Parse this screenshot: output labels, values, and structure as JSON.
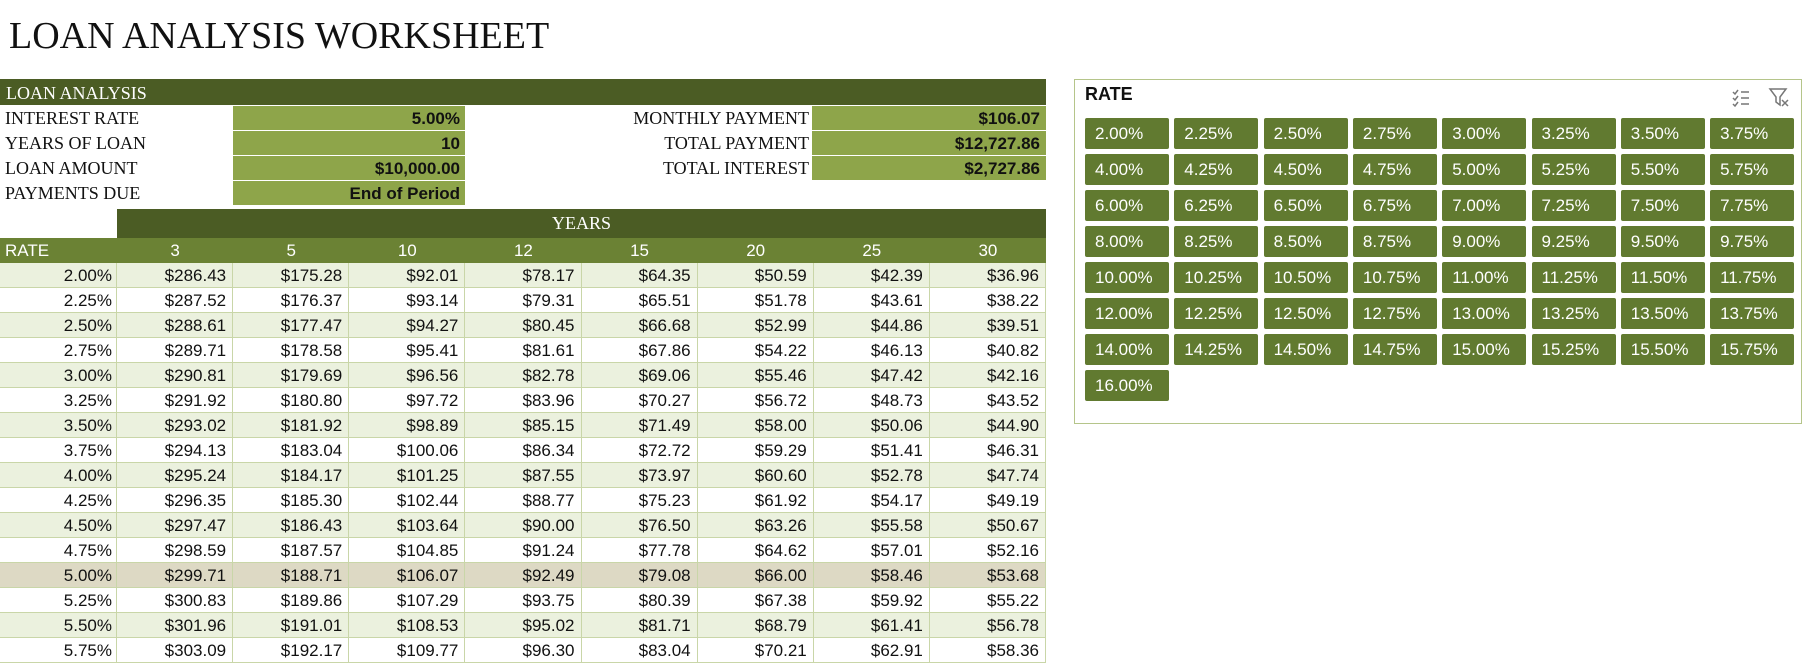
{
  "title": "LOAN ANALYSIS WORKSHEET",
  "loan_analysis": {
    "header": "LOAN ANALYSIS",
    "inputs": [
      {
        "label": "INTEREST RATE",
        "value": "5.00%"
      },
      {
        "label": "YEARS OF LOAN",
        "value": "10"
      },
      {
        "label": "LOAN AMOUNT",
        "value": "$10,000.00"
      },
      {
        "label": "PAYMENTS DUE",
        "value": "End of Period"
      }
    ],
    "outputs": [
      {
        "label": "MONTHLY PAYMENT",
        "value": "$106.07"
      },
      {
        "label": "TOTAL PAYMENT",
        "value": "$12,727.86"
      },
      {
        "label": "TOTAL INTEREST",
        "value": "$2,727.86"
      }
    ]
  },
  "table": {
    "group_header": "YEARS",
    "header": [
      "RATE",
      "3",
      "5",
      "10",
      "12",
      "15",
      "20",
      "25",
      "30"
    ],
    "rows": [
      [
        "2.00%",
        "$286.43",
        "$175.28",
        "$92.01",
        "$78.17",
        "$64.35",
        "$50.59",
        "$42.39",
        "$36.96"
      ],
      [
        "2.25%",
        "$287.52",
        "$176.37",
        "$93.14",
        "$79.31",
        "$65.51",
        "$51.78",
        "$43.61",
        "$38.22"
      ],
      [
        "2.50%",
        "$288.61",
        "$177.47",
        "$94.27",
        "$80.45",
        "$66.68",
        "$52.99",
        "$44.86",
        "$39.51"
      ],
      [
        "2.75%",
        "$289.71",
        "$178.58",
        "$95.41",
        "$81.61",
        "$67.86",
        "$54.22",
        "$46.13",
        "$40.82"
      ],
      [
        "3.00%",
        "$290.81",
        "$179.69",
        "$96.56",
        "$82.78",
        "$69.06",
        "$55.46",
        "$47.42",
        "$42.16"
      ],
      [
        "3.25%",
        "$291.92",
        "$180.80",
        "$97.72",
        "$83.96",
        "$70.27",
        "$56.72",
        "$48.73",
        "$43.52"
      ],
      [
        "3.50%",
        "$293.02",
        "$181.92",
        "$98.89",
        "$85.15",
        "$71.49",
        "$58.00",
        "$50.06",
        "$44.90"
      ],
      [
        "3.75%",
        "$294.13",
        "$183.04",
        "$100.06",
        "$86.34",
        "$72.72",
        "$59.29",
        "$51.41",
        "$46.31"
      ],
      [
        "4.00%",
        "$295.24",
        "$184.17",
        "$101.25",
        "$87.55",
        "$73.97",
        "$60.60",
        "$52.78",
        "$47.74"
      ],
      [
        "4.25%",
        "$296.35",
        "$185.30",
        "$102.44",
        "$88.77",
        "$75.23",
        "$61.92",
        "$54.17",
        "$49.19"
      ],
      [
        "4.50%",
        "$297.47",
        "$186.43",
        "$103.64",
        "$90.00",
        "$76.50",
        "$63.26",
        "$55.58",
        "$50.67"
      ],
      [
        "4.75%",
        "$298.59",
        "$187.57",
        "$104.85",
        "$91.24",
        "$77.78",
        "$64.62",
        "$57.01",
        "$52.16"
      ],
      [
        "5.00%",
        "$299.71",
        "$188.71",
        "$106.07",
        "$92.49",
        "$79.08",
        "$66.00",
        "$58.46",
        "$53.68"
      ],
      [
        "5.25%",
        "$300.83",
        "$189.86",
        "$107.29",
        "$93.75",
        "$80.39",
        "$67.38",
        "$59.92",
        "$55.22"
      ],
      [
        "5.50%",
        "$301.96",
        "$191.01",
        "$108.53",
        "$95.02",
        "$81.71",
        "$68.79",
        "$61.41",
        "$56.78"
      ],
      [
        "5.75%",
        "$303.09",
        "$192.17",
        "$109.77",
        "$96.30",
        "$83.04",
        "$70.21",
        "$62.91",
        "$58.36"
      ]
    ]
  },
  "slicer": {
    "title": "RATE",
    "items": [
      "2.00%",
      "2.25%",
      "2.50%",
      "2.75%",
      "3.00%",
      "3.25%",
      "3.50%",
      "3.75%",
      "4.00%",
      "4.25%",
      "4.50%",
      "4.75%",
      "5.00%",
      "5.25%",
      "5.50%",
      "5.75%",
      "6.00%",
      "6.25%",
      "6.50%",
      "6.75%",
      "7.00%",
      "7.25%",
      "7.50%",
      "7.75%",
      "8.00%",
      "8.25%",
      "8.50%",
      "8.75%",
      "9.00%",
      "9.25%",
      "9.50%",
      "9.75%",
      "10.00%",
      "10.25%",
      "10.50%",
      "10.75%",
      "11.00%",
      "11.25%",
      "11.50%",
      "11.75%",
      "12.00%",
      "12.25%",
      "12.50%",
      "12.75%",
      "13.00%",
      "13.25%",
      "13.50%",
      "13.75%",
      "14.00%",
      "14.25%",
      "14.50%",
      "14.75%",
      "15.00%",
      "15.25%",
      "15.50%",
      "15.75%",
      "16.00%"
    ]
  }
}
